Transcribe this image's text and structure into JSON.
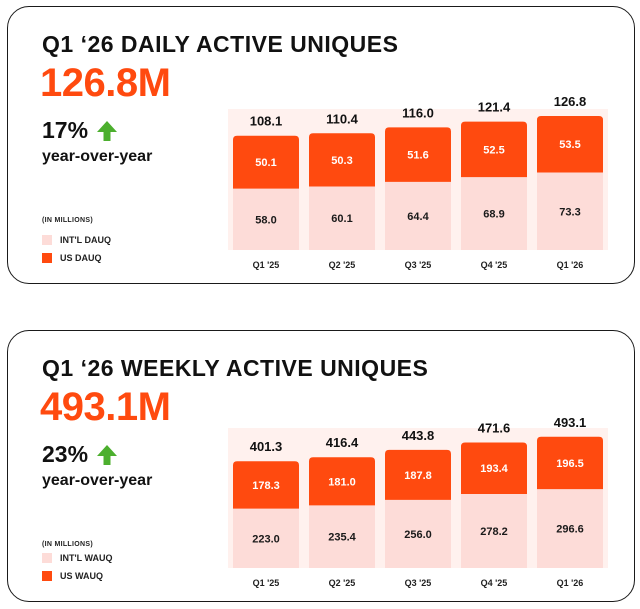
{
  "colors": {
    "us": "#ff4a0f",
    "intl": "#fddcd8",
    "panel": "#fff1ee",
    "up_arrow": "#4caf2e"
  },
  "dau": {
    "title": "Q1 ‘26 DAILY ACTIVE UNIQUES",
    "headline": "126.8M",
    "growth": "17%",
    "growth_icon": "up-arrow-icon",
    "growth_label": "year-over-year",
    "units": "(IN MILLIONS)",
    "legend_intl": "INT'L DAUQ",
    "legend_us": "US DAUQ"
  },
  "wau": {
    "title": "Q1 ‘26 WEEKLY ACTIVE UNIQUES",
    "headline": "493.1M",
    "growth": "23%",
    "growth_icon": "up-arrow-icon",
    "growth_label": "year-over-year",
    "units": "(IN MILLIONS)",
    "legend_intl": "INT'L WAUQ",
    "legend_us": "US WAUQ"
  },
  "chart_data": [
    {
      "type": "bar",
      "stacked": true,
      "title": "Q1 ‘26 DAILY ACTIVE UNIQUES",
      "categories": [
        "Q1 '25",
        "Q2 '25",
        "Q3 '25",
        "Q4 '25",
        "Q1 '26"
      ],
      "series": [
        {
          "name": "INT'L DAUQ",
          "values": [
            58.0,
            60.1,
            64.4,
            68.9,
            73.3
          ]
        },
        {
          "name": "US DAUQ",
          "values": [
            50.1,
            50.3,
            51.6,
            52.5,
            53.5
          ]
        }
      ],
      "totals": [
        108.1,
        110.4,
        116.0,
        121.4,
        126.8
      ],
      "ylim": [
        0,
        140
      ],
      "grid": false,
      "legend": "left"
    },
    {
      "type": "bar",
      "stacked": true,
      "title": "Q1 ‘26 WEEKLY ACTIVE UNIQUES",
      "categories": [
        "Q1 '25",
        "Q2 '25",
        "Q3 '25",
        "Q4 '25",
        "Q1 '26"
      ],
      "series": [
        {
          "name": "INT'L WAUQ",
          "values": [
            223.0,
            235.4,
            256.0,
            278.2,
            296.6
          ]
        },
        {
          "name": "US WAUQ",
          "values": [
            178.3,
            181.0,
            187.8,
            193.4,
            196.5
          ]
        }
      ],
      "totals": [
        401.3,
        416.4,
        443.8,
        471.6,
        493.1
      ],
      "ylim": [
        0,
        560
      ],
      "grid": false,
      "legend": "left"
    }
  ]
}
